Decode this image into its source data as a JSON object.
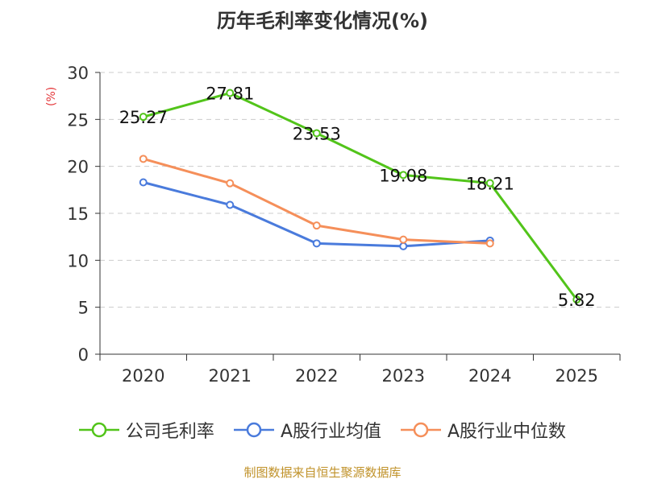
{
  "chart_data": {
    "type": "line",
    "title": "历年毛利率变化情况(%)",
    "ylabel": "(%)",
    "xlabel": "",
    "categories": [
      "2020",
      "2021",
      "2022",
      "2023",
      "2024",
      "2025"
    ],
    "ylim": [
      0,
      30
    ],
    "yticks": [
      0,
      5,
      10,
      15,
      20,
      25,
      30
    ],
    "grid": true,
    "legend_position": "bottom",
    "series": [
      {
        "name": "公司毛利率",
        "color": "#52c41a",
        "values": [
          25.27,
          27.81,
          23.53,
          19.08,
          18.21,
          5.82
        ],
        "labels": [
          "25.27",
          "27.81",
          "23.53",
          "19.08",
          "18.21",
          "5.82"
        ]
      },
      {
        "name": "A股行业均值",
        "color": "#4a7bdc",
        "values": [
          18.3,
          15.9,
          11.8,
          11.5,
          12.1,
          null
        ]
      },
      {
        "name": "A股行业中位数",
        "color": "#f58f5a",
        "values": [
          20.8,
          18.2,
          13.7,
          12.2,
          11.8,
          null
        ]
      }
    ]
  },
  "source": "制图数据来自恒生聚源数据库"
}
